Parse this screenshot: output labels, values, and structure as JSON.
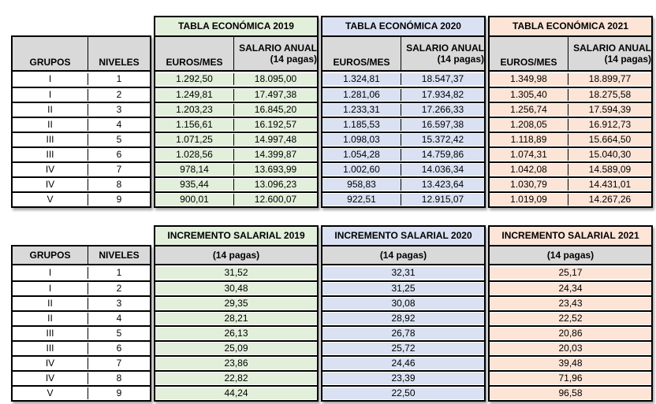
{
  "labels": {
    "grupos": "GRUPOS",
    "niveles": "NIVELES"
  },
  "colors": {
    "green": "#E2EFDA",
    "blue": "#D9E1F2",
    "peach": "#FCE4D6",
    "header_gray": "#D9D9D9",
    "border": "#000000"
  },
  "salary_table": {
    "years": [
      {
        "title": "TABLA ECONÓMICA 2019",
        "euros_label": "EUROS/MES",
        "salario_line1": "SALARIO ANUAL",
        "salario_line2": "(14 pagas)",
        "color": "#E2EFDA"
      },
      {
        "title": "TABLA ECONÓMICA 2020",
        "euros_label": "EUROS/MES",
        "salario_line1": "SALARIO ANUAL",
        "salario_line2": "(14 pagas)",
        "color": "#D9E1F2"
      },
      {
        "title": "TABLA ECONÓMICA 2021",
        "euros_label": "EUROS/MES",
        "salario_line1": "SALARIO ANUAL",
        "salario_line2": "(14 pagas)",
        "color": "#FCE4D6"
      }
    ],
    "rows": [
      {
        "grupo": "I",
        "nivel": "1",
        "values": [
          [
            "1.292,50",
            "18.095,00"
          ],
          [
            "1.324,81",
            "18.547,37"
          ],
          [
            "1.349,98",
            "18.899,77"
          ]
        ]
      },
      {
        "grupo": "I",
        "nivel": "2",
        "values": [
          [
            "1.249,81",
            "17.497,38"
          ],
          [
            "1.281,06",
            "17.934,82"
          ],
          [
            "1.305,40",
            "18.275,58"
          ]
        ]
      },
      {
        "grupo": "II",
        "nivel": "3",
        "values": [
          [
            "1.203,23",
            "16.845,20"
          ],
          [
            "1.233,31",
            "17.266,33"
          ],
          [
            "1.256,74",
            "17.594,39"
          ]
        ]
      },
      {
        "grupo": "II",
        "nivel": "4",
        "values": [
          [
            "1.156,61",
            "16.192,57"
          ],
          [
            "1.185,53",
            "16.597,38"
          ],
          [
            "1.208,05",
            "16.912,73"
          ]
        ]
      },
      {
        "grupo": "III",
        "nivel": "5",
        "values": [
          [
            "1.071,25",
            "14.997,48"
          ],
          [
            "1.098,03",
            "15.372,42"
          ],
          [
            "1.118,89",
            "15.664,50"
          ]
        ]
      },
      {
        "grupo": "III",
        "nivel": "6",
        "values": [
          [
            "1.028,56",
            "14.399,87"
          ],
          [
            "1.054,28",
            "14.759,86"
          ],
          [
            "1.074,31",
            "15.040,30"
          ]
        ]
      },
      {
        "grupo": "IV",
        "nivel": "7",
        "values": [
          [
            "978,14",
            "13.693,99"
          ],
          [
            "1.002,60",
            "14.036,34"
          ],
          [
            "1.042,08",
            "14.589,09"
          ]
        ]
      },
      {
        "grupo": "IV",
        "nivel": "8",
        "values": [
          [
            "935,44",
            "13.096,23"
          ],
          [
            "958,83",
            "13.423,64"
          ],
          [
            "1.030,79",
            "14.431,01"
          ]
        ]
      },
      {
        "grupo": "V",
        "nivel": "9",
        "values": [
          [
            "900,01",
            "12.600,07"
          ],
          [
            "922,51",
            "12.915,07"
          ],
          [
            "1.019,09",
            "14.267,26"
          ]
        ]
      }
    ]
  },
  "increment_table": {
    "years": [
      {
        "title": "INCREMENTO SALARIAL 2019",
        "subtitle": "(14 pagas)",
        "color": "#E2EFDA"
      },
      {
        "title": "INCREMENTO SALARIAL 2020",
        "subtitle": "(14 pagas)",
        "color": "#D9E1F2"
      },
      {
        "title": "INCREMENTO SALARIAL 2021",
        "subtitle": "(14 pagas)",
        "color": "#FCE4D6"
      }
    ],
    "rows": [
      {
        "grupo": "I",
        "nivel": "1",
        "values": [
          "31,52",
          "32,31",
          "25,17"
        ]
      },
      {
        "grupo": "I",
        "nivel": "2",
        "values": [
          "30,48",
          "31,25",
          "24,34"
        ]
      },
      {
        "grupo": "II",
        "nivel": "3",
        "values": [
          "29,35",
          "30,08",
          "23,43"
        ]
      },
      {
        "grupo": "II",
        "nivel": "4",
        "values": [
          "28,21",
          "28,92",
          "22,52"
        ]
      },
      {
        "grupo": "III",
        "nivel": "5",
        "values": [
          "26,13",
          "26,78",
          "20,86"
        ]
      },
      {
        "grupo": "III",
        "nivel": "6",
        "values": [
          "25,09",
          "25,72",
          "20,03"
        ]
      },
      {
        "grupo": "IV",
        "nivel": "7",
        "values": [
          "23,86",
          "24,46",
          "39,48"
        ]
      },
      {
        "grupo": "IV",
        "nivel": "8",
        "values": [
          "22,82",
          "23,39",
          "71,96"
        ]
      },
      {
        "grupo": "V",
        "nivel": "9",
        "values": [
          "44,24",
          "22,50",
          "96,58"
        ]
      }
    ]
  }
}
